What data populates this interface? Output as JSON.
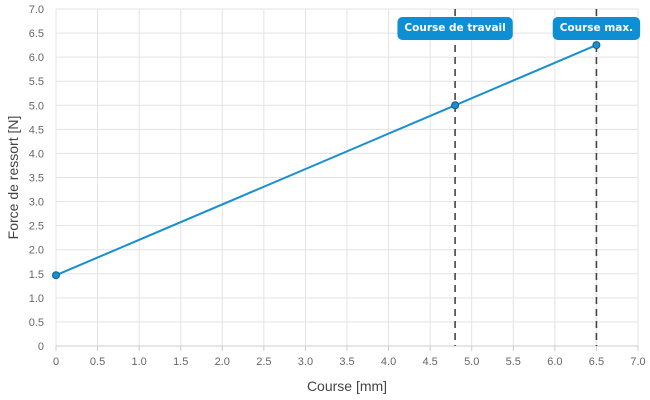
{
  "chart_data": {
    "type": "line",
    "xlabel": "Course [mm]",
    "ylabel": "Force de ressort [N]",
    "xlim": [
      0,
      7
    ],
    "ylim": [
      0,
      7
    ],
    "x_ticks": [
      "0",
      "0.5",
      "1.0",
      "1.5",
      "2.0",
      "2.5",
      "3.0",
      "3.5",
      "4.0",
      "4.5",
      "5.0",
      "5.5",
      "6.0",
      "6.5",
      "7.0"
    ],
    "y_ticks": [
      "0",
      "0.5",
      "1.0",
      "1.5",
      "2.0",
      "2.5",
      "3.0",
      "3.5",
      "4.0",
      "4.5",
      "5.0",
      "5.5",
      "6.0",
      "6.5",
      "7.0"
    ],
    "grid": true,
    "series": [
      {
        "color": "#1a8fd0",
        "points": [
          {
            "x": 0,
            "y": 1.47
          },
          {
            "x": 4.8,
            "y": 5.0
          },
          {
            "x": 6.5,
            "y": 6.25
          }
        ]
      }
    ],
    "markers": [
      {
        "label": "Course de travail",
        "x": 4.8,
        "color": "#444444"
      },
      {
        "label": "Course max.",
        "x": 6.5,
        "color": "#444444"
      }
    ],
    "callout_color": "#0e8fd3"
  }
}
